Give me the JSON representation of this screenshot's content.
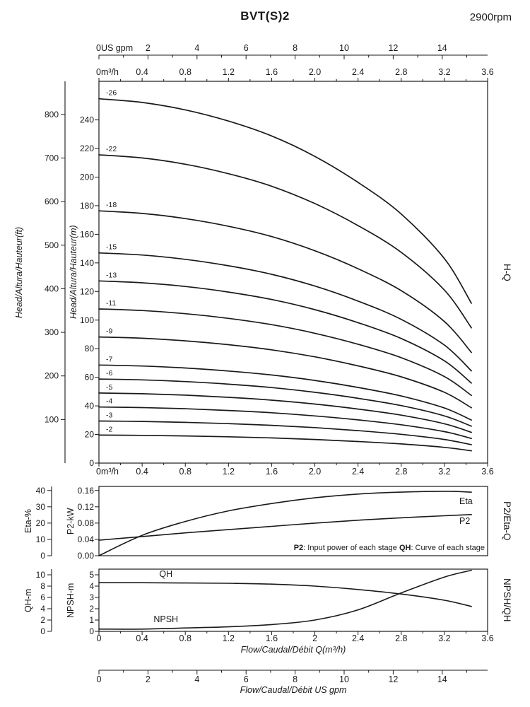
{
  "header": {
    "title": "BVT(S)2",
    "speed": "2900rpm"
  },
  "side_labels": {
    "hq": "H-Q",
    "p2eta": "P2/Eta-Q",
    "npshqh": "NPSH/QH"
  },
  "axis_titles": {
    "head_ft": "Head/Altura/Hauteur(ft)",
    "head_m": "Head/Altura/Hauteur(m)",
    "eta": "Eta-%",
    "p2": "P2-kW",
    "qh": "QH-m",
    "npsh": "NPSH-m",
    "flow_m3h": "Flow/Caudal/Débit Q(m³/h)",
    "flow_gpm": "Flow/Caudal/Débit  US gpm"
  },
  "bottom_gpm_axis": {
    "ticks": [
      0,
      2,
      4,
      6,
      8,
      10,
      12,
      14
    ]
  },
  "chart_data": [
    {
      "type": "line",
      "title": "H-Q",
      "xlabel": "Flow Q (m³/h)",
      "ylabel": "Head (m)",
      "x_range_m3h": [
        0,
        3.6
      ],
      "y_range_m": [
        0,
        267
      ],
      "x_m3h": [
        0,
        0.4,
        0.8,
        1.2,
        1.6,
        2.0,
        2.4,
        2.8,
        3.2,
        3.45
      ],
      "y_ticks_m": [
        0,
        20,
        40,
        60,
        80,
        100,
        120,
        140,
        160,
        180,
        200,
        220,
        240
      ],
      "y_ticks_ft": [
        100,
        200,
        300,
        400,
        500,
        600,
        700,
        800
      ],
      "gpm_ticks": [
        0,
        2,
        4,
        6,
        8,
        10,
        12,
        14
      ],
      "gpm_tick_labels": [
        "0US gpm",
        "2",
        "4",
        "6",
        "8",
        "10",
        "12",
        "14"
      ],
      "m3h_tick_labels": [
        "0m³/h",
        "0.4",
        "0.8",
        "1.2",
        "1.6",
        "2.0",
        "2.4",
        "2.8",
        "3.2",
        "3.6"
      ],
      "series": [
        {
          "label": "-2",
          "stages": 2,
          "values": [
            19.6,
            19.4,
            19.0,
            18.4,
            17.6,
            16.5,
            15.1,
            13.4,
            11.0,
            8.6
          ]
        },
        {
          "label": "-3",
          "stages": 3,
          "values": [
            29.4,
            29.1,
            28.5,
            27.6,
            26.4,
            24.8,
            22.7,
            20.1,
            16.5,
            12.9
          ]
        },
        {
          "label": "-4",
          "stages": 4,
          "values": [
            39.2,
            38.8,
            38.0,
            36.8,
            35.2,
            33.0,
            30.2,
            26.8,
            22.0,
            17.2
          ]
        },
        {
          "label": "-5",
          "stages": 5,
          "values": [
            49.0,
            48.5,
            47.5,
            46.0,
            44.0,
            41.3,
            37.8,
            33.5,
            27.5,
            21.5
          ]
        },
        {
          "label": "-6",
          "stages": 6,
          "values": [
            58.8,
            58.2,
            57.0,
            55.2,
            52.8,
            49.5,
            45.3,
            40.2,
            33.0,
            25.8
          ]
        },
        {
          "label": "-7",
          "stages": 7,
          "values": [
            68.6,
            67.9,
            66.5,
            64.4,
            61.6,
            57.8,
            52.9,
            46.9,
            38.5,
            30.1
          ]
        },
        {
          "label": "-9",
          "stages": 9,
          "values": [
            88.2,
            87.3,
            85.5,
            82.8,
            79.2,
            74.3,
            68.0,
            60.3,
            49.5,
            38.7
          ]
        },
        {
          "label": "-11",
          "stages": 11,
          "values": [
            107.8,
            106.7,
            104.5,
            101.2,
            96.8,
            90.8,
            83.1,
            73.7,
            60.5,
            47.3
          ]
        },
        {
          "label": "-13",
          "stages": 13,
          "values": [
            127.4,
            126.1,
            123.5,
            119.6,
            114.4,
            107.3,
            98.2,
            87.1,
            71.5,
            55.9
          ]
        },
        {
          "label": "-15",
          "stages": 15,
          "values": [
            147.0,
            145.5,
            142.5,
            138.0,
            132.0,
            123.8,
            113.3,
            100.5,
            82.5,
            64.5
          ]
        },
        {
          "label": "-18",
          "stages": 18,
          "values": [
            176.4,
            174.6,
            171.0,
            165.6,
            158.4,
            148.5,
            135.9,
            120.6,
            99.0,
            77.4
          ]
        },
        {
          "label": "-22",
          "stages": 22,
          "values": [
            215.6,
            213.4,
            209.0,
            202.4,
            193.6,
            181.5,
            166.1,
            147.4,
            121.0,
            94.6
          ]
        },
        {
          "label": "-26",
          "stages": 26,
          "values": [
            254.8,
            252.2,
            247.0,
            239.2,
            228.8,
            214.5,
            196.3,
            174.2,
            143.0,
            111.8
          ]
        }
      ]
    },
    {
      "type": "line",
      "title": "P2/Eta-Q",
      "x_m3h": [
        0,
        0.4,
        0.8,
        1.2,
        1.6,
        2.0,
        2.4,
        2.8,
        3.2,
        3.45
      ],
      "eta_ticks": [
        0,
        10,
        20,
        30,
        40
      ],
      "eta_range": [
        0,
        42.5
      ],
      "p2_ticks": [
        0,
        0.04,
        0.08,
        0.12,
        0.16
      ],
      "p2_tick_labels": [
        "0.00",
        "0.04",
        "0.08",
        "0.12",
        "0.16"
      ],
      "p2_range": [
        0,
        0.17
      ],
      "series": [
        {
          "label": "Eta",
          "axis": "eta",
          "values": [
            0,
            12.5,
            21.0,
            27.5,
            32.0,
            35.5,
            37.8,
            39.0,
            39.5,
            39.0
          ]
        },
        {
          "label": "P2",
          "axis": "p2",
          "values": [
            0.038,
            0.047,
            0.056,
            0.064,
            0.072,
            0.08,
            0.087,
            0.093,
            0.098,
            0.101
          ]
        }
      ],
      "annotation_parts": [
        {
          "text": "P2",
          "bold": true
        },
        {
          "text": ": Input power of each stage ",
          "bold": false
        },
        {
          "text": "QH",
          "bold": true
        },
        {
          "text": ": Curve of each stage",
          "bold": false
        }
      ]
    },
    {
      "type": "line",
      "title": "NPSH/QH",
      "x_m3h": [
        0,
        0.4,
        0.8,
        1.2,
        1.6,
        2.0,
        2.4,
        2.8,
        3.2,
        3.45
      ],
      "qh_ticks": [
        0,
        2,
        4,
        6,
        8,
        10
      ],
      "qh_range": [
        0,
        11
      ],
      "npsh_ticks": [
        0,
        1,
        2,
        3,
        4,
        5
      ],
      "npsh_range": [
        0,
        5.5
      ],
      "x_tick_labels": [
        "0",
        "0.4",
        "0.8",
        "1.2",
        "1.6",
        "2",
        "2.4",
        "2.8",
        "3.2",
        "3.6"
      ],
      "series": [
        {
          "label": "QH",
          "axis": "qh",
          "values": [
            8.6,
            8.6,
            8.55,
            8.5,
            8.35,
            8.0,
            7.4,
            6.6,
            5.5,
            4.4
          ]
        },
        {
          "label": "NPSH",
          "axis": "npsh",
          "values": [
            0.2,
            0.2,
            0.3,
            0.4,
            0.6,
            1.0,
            1.9,
            3.4,
            4.8,
            5.4
          ]
        }
      ]
    }
  ]
}
